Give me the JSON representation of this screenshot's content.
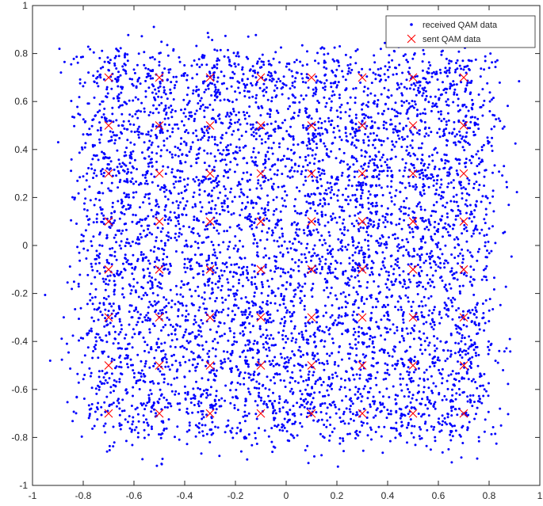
{
  "chart_data": {
    "type": "scatter",
    "title": "",
    "xlabel": "",
    "ylabel": "",
    "xlim": [
      -1,
      1
    ],
    "ylim": [
      -1,
      1
    ],
    "xticks": [
      -1,
      -0.8,
      -0.6,
      -0.4,
      -0.2,
      0,
      0.2,
      0.4,
      0.6,
      0.8,
      1
    ],
    "yticks": [
      -1,
      -0.8,
      -0.6,
      -0.4,
      -0.2,
      0,
      0.2,
      0.4,
      0.6,
      0.8,
      1
    ],
    "xtick_labels": [
      "-1",
      "-0.8",
      "-0.6",
      "-0.4",
      "-0.2",
      "0",
      "0.2",
      "0.4",
      "0.6",
      "0.8",
      "1"
    ],
    "ytick_labels": [
      "-1",
      "-0.8",
      "-0.6",
      "-0.4",
      "-0.2",
      "0",
      "0.2",
      "0.4",
      "0.6",
      "0.8",
      "1"
    ],
    "grid": false,
    "legend_position": "top-right",
    "received_sample_count": 6000,
    "received_noise_spread": 0.075,
    "series": [
      {
        "name": "received QAM data",
        "marker": "dot",
        "color": "#0000ff",
        "description_of_values": "noisy constellation points scattered around each sent symbol"
      },
      {
        "name": "sent QAM data",
        "marker": "x",
        "color": "#ff0000",
        "points": [
          [
            -0.7,
            0.7
          ],
          [
            -0.5,
            0.7
          ],
          [
            -0.3,
            0.7
          ],
          [
            -0.1,
            0.7
          ],
          [
            0.1,
            0.7
          ],
          [
            0.3,
            0.7
          ],
          [
            0.5,
            0.7
          ],
          [
            0.7,
            0.7
          ],
          [
            -0.7,
            0.5
          ],
          [
            -0.5,
            0.5
          ],
          [
            -0.3,
            0.5
          ],
          [
            -0.1,
            0.5
          ],
          [
            0.1,
            0.5
          ],
          [
            0.3,
            0.5
          ],
          [
            0.5,
            0.5
          ],
          [
            0.7,
            0.5
          ],
          [
            -0.7,
            0.3
          ],
          [
            -0.5,
            0.3
          ],
          [
            -0.3,
            0.3
          ],
          [
            -0.1,
            0.3
          ],
          [
            0.1,
            0.3
          ],
          [
            0.3,
            0.3
          ],
          [
            0.5,
            0.3
          ],
          [
            0.7,
            0.3
          ],
          [
            -0.7,
            0.1
          ],
          [
            -0.5,
            0.1
          ],
          [
            -0.3,
            0.1
          ],
          [
            -0.1,
            0.1
          ],
          [
            0.1,
            0.1
          ],
          [
            0.3,
            0.1
          ],
          [
            0.5,
            0.1
          ],
          [
            0.7,
            0.1
          ],
          [
            -0.7,
            -0.1
          ],
          [
            -0.5,
            -0.1
          ],
          [
            -0.3,
            -0.1
          ],
          [
            -0.1,
            -0.1
          ],
          [
            0.1,
            -0.1
          ],
          [
            0.3,
            -0.1
          ],
          [
            0.5,
            -0.1
          ],
          [
            0.7,
            -0.1
          ],
          [
            -0.7,
            -0.3
          ],
          [
            -0.5,
            -0.3
          ],
          [
            -0.3,
            -0.3
          ],
          [
            -0.1,
            -0.3
          ],
          [
            0.1,
            -0.3
          ],
          [
            0.3,
            -0.3
          ],
          [
            0.5,
            -0.3
          ],
          [
            0.7,
            -0.3
          ],
          [
            -0.7,
            -0.5
          ],
          [
            -0.5,
            -0.5
          ],
          [
            -0.3,
            -0.5
          ],
          [
            -0.1,
            -0.5
          ],
          [
            0.1,
            -0.5
          ],
          [
            0.3,
            -0.5
          ],
          [
            0.5,
            -0.5
          ],
          [
            0.7,
            -0.5
          ],
          [
            -0.7,
            -0.7
          ],
          [
            -0.5,
            -0.7
          ],
          [
            -0.3,
            -0.7
          ],
          [
            -0.1,
            -0.7
          ],
          [
            0.1,
            -0.7
          ],
          [
            0.3,
            -0.7
          ],
          [
            0.5,
            -0.7
          ],
          [
            0.7,
            -0.7
          ]
        ]
      }
    ]
  }
}
